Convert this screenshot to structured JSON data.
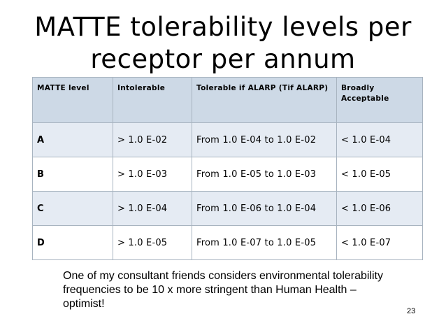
{
  "slide": {
    "title_line1": "MATTE tolerability levels per",
    "title_line2": "receptor per annum",
    "page_number": "23"
  },
  "table": {
    "headers": [
      "MATTE level",
      "Intolerable",
      "Tolerable if ALARP (Tif ALARP)",
      "Broadly Acceptable"
    ],
    "rows": [
      [
        "A",
        "> 1.0 E-02",
        "From 1.0 E-04 to 1.0 E-02",
        "< 1.0 E-04"
      ],
      [
        "B",
        "> 1.0 E-03",
        "From 1.0 E-05 to 1.0 E-03",
        "< 1.0 E-05"
      ],
      [
        "C",
        "> 1.0 E-04",
        "From 1.0 E-06 to 1.0 E-04",
        "< 1.0 E-06"
      ],
      [
        "D",
        "> 1.0 E-05",
        "From 1.0 E-07 to 1.0 E-05",
        "< 1.0 E-07"
      ]
    ]
  },
  "note": "One of my consultant friends considers environmental tolerability frequencies to be 10 x more stringent than Human Health – optimist!",
  "colors": {
    "header_fill": "#cdd9e6",
    "alt_row_fill": "#e5ebf3",
    "grid": "#a8b4c0"
  }
}
